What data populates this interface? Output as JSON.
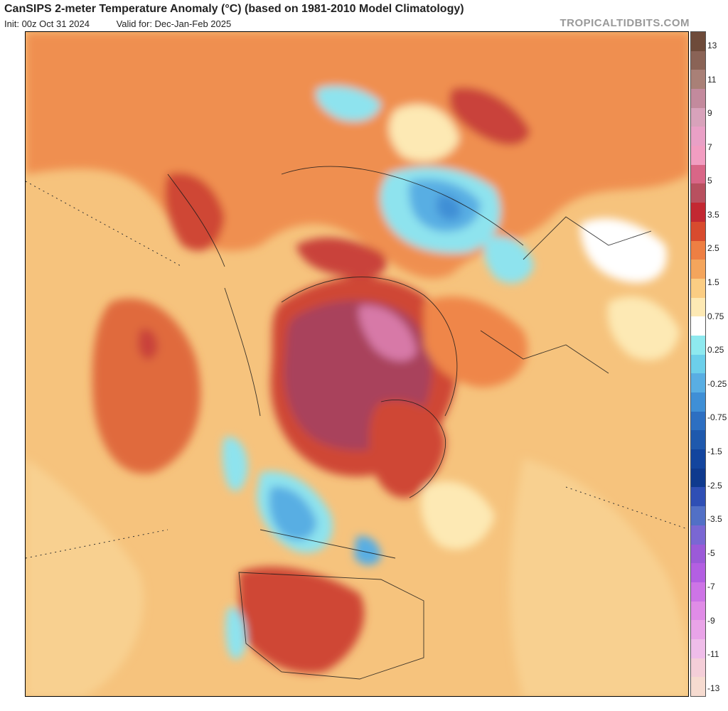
{
  "header": {
    "title": "CanSIPS 2-meter Temperature Anomaly (°C) (based on 1981-2010 Model Climatology)",
    "init": "Init: 00z Oct 31 2024",
    "valid": "Valid for: Dec-Jan-Feb 2025",
    "brand": "TROPICALTIDBITS.COM"
  },
  "legend": {
    "labels": [
      "13",
      "11",
      "9",
      "7",
      "5",
      "3.5",
      "2.5",
      "1.5",
      "0.75",
      "0.25",
      "-0.25",
      "-0.75",
      "-1.5",
      "-2.5",
      "-3.5",
      "-5",
      "-7",
      "-9",
      "-11",
      "-13"
    ],
    "colors": [
      "#6e4b3a",
      "#8a6356",
      "#a98077",
      "#c38a9d",
      "#d8a2bb",
      "#e9a0c6",
      "#f29dc1",
      "#d96687",
      "#b8505f",
      "#c32832",
      "#d84b2e",
      "#ee7f43",
      "#f4a55c",
      "#fbcd83",
      "#fde9b4",
      "#ffffff",
      "#8ee9ef",
      "#6ccfea",
      "#59aee3",
      "#3f8fd6",
      "#2d6fc2",
      "#1f59ad",
      "#13459e",
      "#0f3a8e",
      "#2f4fb5",
      "#5270c6",
      "#7a67d3",
      "#9b5ad8",
      "#b35fe2",
      "#cd74e6",
      "#e08ce7",
      "#e9a4e8",
      "#efbde9",
      "#f4ced8",
      "#f6dbd0"
    ]
  },
  "map": {
    "description_colors": {
      "ocean": "#f6c37d",
      "warm": "#ef8648",
      "hot": "#cf4636",
      "very_hot": "#a9435c",
      "extreme": "#d779a7",
      "cool": "#8ee3ee",
      "cold": "#4d9ee0",
      "neutral": "#ffffff"
    }
  }
}
